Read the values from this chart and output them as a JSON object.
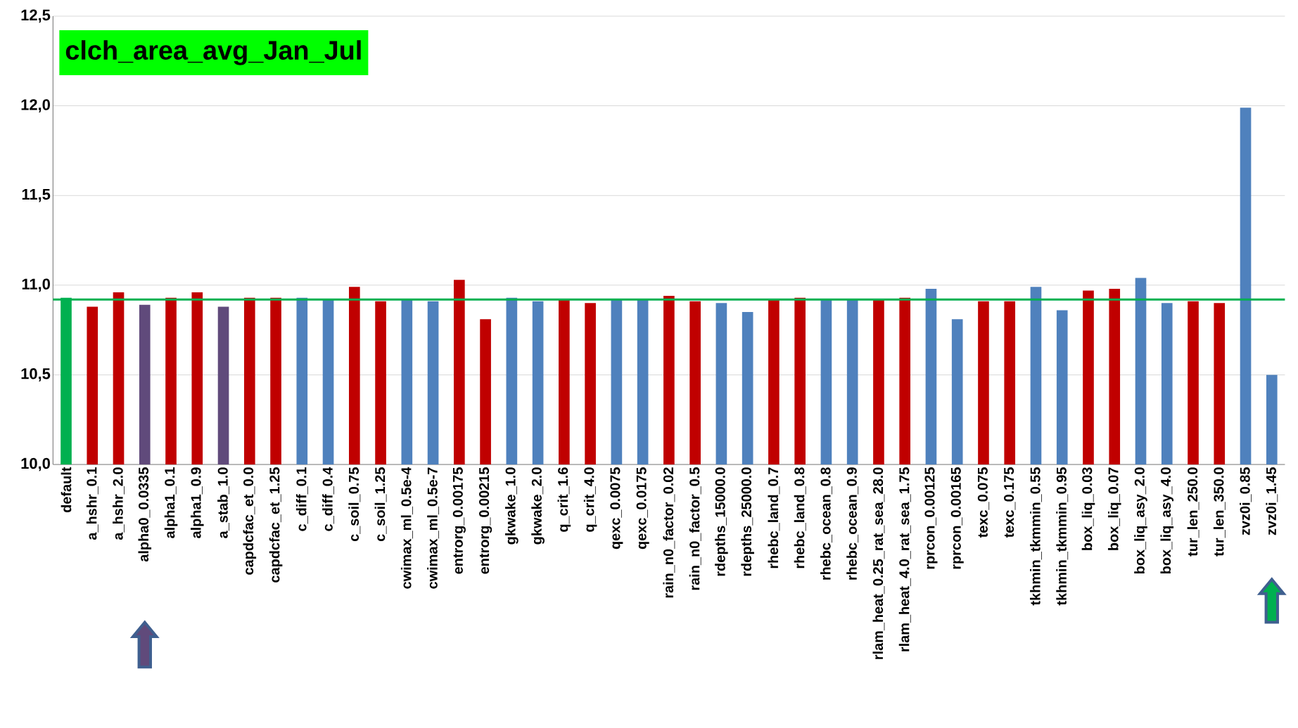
{
  "chart_data": {
    "type": "bar",
    "title": "clch_area_avg_Jan_Jul",
    "categories": [
      "default",
      "a_hshr_0.1",
      "a_hshr_2.0",
      "alpha0_0.0335",
      "alpha1_0.1",
      "alpha1_0.9",
      "a_stab_1.0",
      "capdcfac_et_0.0",
      "capdcfac_et_1.25",
      "c_diff_0.1",
      "c_diff_0.4",
      "c_soil_0.75",
      "c_soil_1.25",
      "cwimax_ml_0.5e-4",
      "cwimax_ml_0.5e-7",
      "entrorg_0.00175",
      "entrorg_0.00215",
      "gkwake_1.0",
      "gkwake_2.0",
      "q_crit_1.6",
      "q_crit_4.0",
      "qexc_0.0075",
      "qexc_0.0175",
      "rain_n0_factor_0.02",
      "rain_n0_factor_0.5",
      "rdepths_15000.0",
      "rdepths_25000.0",
      "rhebc_land_0.7",
      "rhebc_land_0.8",
      "rhebc_ocean_0.8",
      "rhebc_ocean_0.9",
      "rlam_heat_0.25_rat_sea_28.0",
      "rlam_heat_4.0_rat_sea_1.75",
      "rprcon_0.00125",
      "rprcon_0.00165",
      "texc_0.075",
      "texc_0.175",
      "tkhmin_tkmmin_0.55",
      "tkhmin_tkmmin_0.95",
      "box_liq_0.03",
      "box_liq_0.07",
      "box_liq_asy_2.0",
      "box_liq_asy_4.0",
      "tur_len_250.0",
      "tur_len_350.0",
      "zvz0i_0.85",
      "zvz0i_1.45"
    ],
    "values": [
      10.93,
      10.88,
      10.96,
      10.89,
      10.93,
      10.96,
      10.88,
      10.93,
      10.93,
      10.93,
      10.92,
      10.99,
      10.91,
      10.92,
      10.91,
      11.03,
      10.81,
      10.93,
      10.91,
      10.92,
      10.9,
      10.92,
      10.92,
      10.94,
      10.91,
      10.9,
      10.85,
      10.92,
      10.93,
      10.92,
      10.92,
      10.92,
      10.93,
      10.98,
      10.81,
      10.91,
      10.91,
      10.99,
      10.86,
      10.97,
      10.98,
      11.04,
      10.9,
      10.91,
      10.9,
      11.99,
      10.5
    ],
    "colors": [
      "#00b050",
      "#c00000",
      "#c00000",
      "#604a7b",
      "#c00000",
      "#c00000",
      "#604a7b",
      "#c00000",
      "#c00000",
      "#4f81bd",
      "#4f81bd",
      "#c00000",
      "#c00000",
      "#4f81bd",
      "#4f81bd",
      "#c00000",
      "#c00000",
      "#4f81bd",
      "#4f81bd",
      "#c00000",
      "#c00000",
      "#4f81bd",
      "#4f81bd",
      "#c00000",
      "#c00000",
      "#4f81bd",
      "#4f81bd",
      "#c00000",
      "#c00000",
      "#4f81bd",
      "#4f81bd",
      "#c00000",
      "#c00000",
      "#4f81bd",
      "#4f81bd",
      "#c00000",
      "#c00000",
      "#4f81bd",
      "#4f81bd",
      "#c00000",
      "#c00000",
      "#4f81bd",
      "#4f81bd",
      "#c00000",
      "#c00000",
      "#4f81bd",
      "#4f81bd"
    ],
    "ylim": [
      10.0,
      12.5
    ],
    "yticks": [
      {
        "value": 10.0,
        "label": "10,0"
      },
      {
        "value": 10.5,
        "label": "10,5"
      },
      {
        "value": 11.0,
        "label": "11,0"
      },
      {
        "value": 11.5,
        "label": "11,5"
      },
      {
        "value": 12.0,
        "label": "12,0"
      },
      {
        "value": 12.5,
        "label": "12,5"
      }
    ],
    "grid": "y",
    "ref_lines": [
      {
        "axis": "y",
        "value": 10.92,
        "color": "#00b050"
      }
    ]
  }
}
